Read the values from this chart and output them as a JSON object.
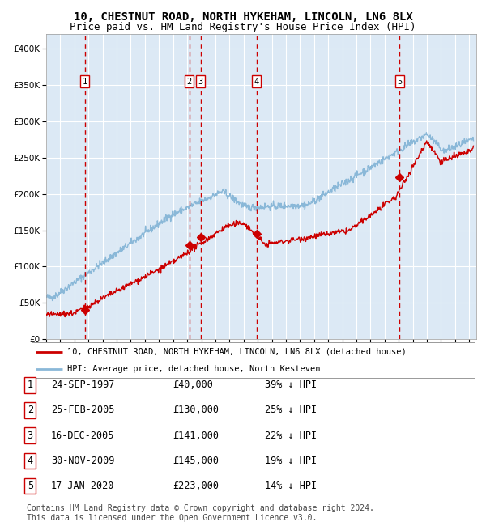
{
  "title": "10, CHESTNUT ROAD, NORTH HYKEHAM, LINCOLN, LN6 8LX",
  "subtitle": "Price paid vs. HM Land Registry's House Price Index (HPI)",
  "ylim": [
    0,
    420000
  ],
  "yticks": [
    0,
    50000,
    100000,
    150000,
    200000,
    250000,
    300000,
    350000,
    400000
  ],
  "ytick_labels": [
    "£0",
    "£50K",
    "£100K",
    "£150K",
    "£200K",
    "£250K",
    "£300K",
    "£350K",
    "£400K"
  ],
  "xlim_start": 1995.0,
  "xlim_end": 2025.5,
  "bg_color": "#dce9f5",
  "grid_color": "#ffffff",
  "red_line_color": "#cc0000",
  "blue_line_color": "#8ab8d8",
  "transaction_dates": [
    1997.73,
    2005.14,
    2005.96,
    2009.92,
    2020.05
  ],
  "transaction_prices": [
    40000,
    130000,
    141000,
    145000,
    223000
  ],
  "transaction_labels": [
    "1",
    "2",
    "3",
    "4",
    "5"
  ],
  "vline_color": "#cc0000",
  "marker_color": "#cc0000",
  "legend_label_red": "10, CHESTNUT ROAD, NORTH HYKEHAM, LINCOLN, LN6 8LX (detached house)",
  "legend_label_blue": "HPI: Average price, detached house, North Kesteven",
  "table_rows": [
    [
      "1",
      "24-SEP-1997",
      "£40,000",
      "39% ↓ HPI"
    ],
    [
      "2",
      "25-FEB-2005",
      "£130,000",
      "25% ↓ HPI"
    ],
    [
      "3",
      "16-DEC-2005",
      "£141,000",
      "22% ↓ HPI"
    ],
    [
      "4",
      "30-NOV-2009",
      "£145,000",
      "19% ↓ HPI"
    ],
    [
      "5",
      "17-JAN-2020",
      "£223,000",
      "14% ↓ HPI"
    ]
  ],
  "footer": "Contains HM Land Registry data © Crown copyright and database right 2024.\nThis data is licensed under the Open Government Licence v3.0.",
  "title_fontsize": 10,
  "subtitle_fontsize": 9,
  "tick_fontsize": 7.5,
  "legend_fontsize": 8,
  "table_fontsize": 8.5,
  "footer_fontsize": 7
}
